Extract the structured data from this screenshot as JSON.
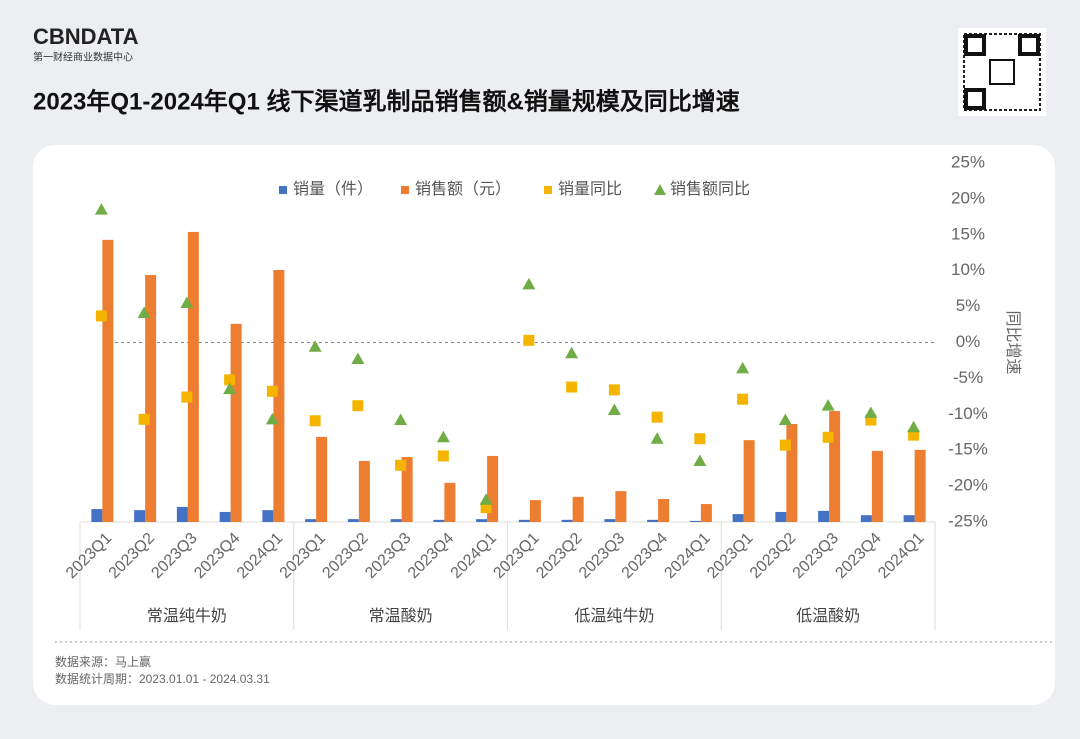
{
  "header": {
    "logo": "CBNDATA",
    "logo_subtitle": "第一财经商业数据中心"
  },
  "chart_data": {
    "type": "bar",
    "title": "2023年Q1-2024年Q1 线下渠道乳制品销售额&销量规模及同比增速",
    "categories": [
      "2023Q1",
      "2023Q2",
      "2023Q3",
      "2023Q4",
      "2024Q1",
      "2023Q1",
      "2023Q2",
      "2023Q3",
      "2023Q4",
      "2024Q1",
      "2023Q1",
      "2023Q2",
      "2023Q3",
      "2023Q4",
      "2024Q1",
      "2023Q1",
      "2023Q2",
      "2023Q3",
      "2023Q4",
      "2024Q1"
    ],
    "groups": [
      "常温纯牛奶",
      "常温酸奶",
      "低温纯牛奶",
      "低温酸奶"
    ],
    "ylim": [
      0,
      100
    ],
    "y2lim": [
      -25,
      25
    ],
    "y2ticks": [
      {
        "value": 25,
        "label": "25%"
      },
      {
        "value": 20,
        "label": "20%"
      },
      {
        "value": 15,
        "label": "15%"
      },
      {
        "value": 10,
        "label": "10%"
      },
      {
        "value": 5,
        "label": "5%"
      },
      {
        "value": 0,
        "label": "0%"
      },
      {
        "value": -5,
        "label": "-5%"
      },
      {
        "value": -10,
        "label": "-10%"
      },
      {
        "value": -15,
        "label": "-15%"
      },
      {
        "value": -20,
        "label": "-20%"
      },
      {
        "value": -25,
        "label": "-25%"
      }
    ],
    "y2_label": "同比增速",
    "zero_line": true,
    "series": [
      {
        "name": "销量（件）",
        "color": "#4472c4",
        "marker": "bar",
        "values": [
          3.6,
          3.3,
          4.2,
          2.8,
          3.3,
          0.8,
          0.8,
          0.8,
          0.6,
          0.8,
          0.6,
          0.6,
          0.8,
          0.6,
          0.3,
          2.2,
          2.8,
          3.1,
          1.9,
          1.9
        ]
      },
      {
        "name": "销售额（元）",
        "color": "#ed7d31",
        "marker": "bar",
        "values": [
          78.6,
          68.8,
          80.8,
          55.2,
          70.2,
          23.7,
          17.0,
          18.1,
          10.9,
          18.4,
          6.1,
          7.0,
          8.6,
          6.4,
          5.0,
          22.8,
          27.3,
          30.9,
          19.8,
          20.1
        ]
      },
      {
        "name": "销量同比",
        "color": "#f4b400",
        "marker": "square",
        "axis": "y2",
        "values": [
          3.7,
          -10.7,
          -7.6,
          -5.2,
          -6.8,
          -10.9,
          -8.8,
          -17.1,
          -15.8,
          -23.0,
          0.3,
          -6.2,
          -6.6,
          -10.4,
          -13.4,
          -7.9,
          -14.3,
          -13.2,
          -10.8,
          -12.9
        ]
      },
      {
        "name": "销售额同比",
        "color": "#70ad47",
        "marker": "triangle",
        "axis": "y2",
        "values": [
          18.5,
          4.1,
          5.5,
          -6.5,
          -10.7,
          -0.6,
          -2.3,
          -10.8,
          -13.2,
          -21.9,
          8.1,
          -1.5,
          -9.4,
          -13.4,
          -16.5,
          -3.6,
          -10.8,
          -8.8,
          -9.8,
          -11.8
        ]
      }
    ],
    "legend": "top"
  },
  "footer": {
    "source": "数据来源：马上赢",
    "period": "数据统计周期：2023.01.01 - 2024.03.31"
  }
}
